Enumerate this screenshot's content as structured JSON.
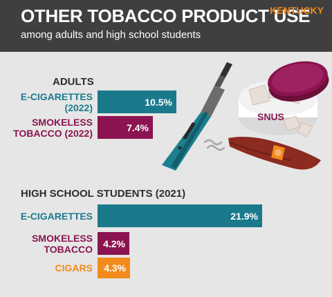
{
  "header": {
    "title": "OTHER TOBACCO PRODUCT USE",
    "subtitle": "among adults and high school students",
    "state": "KENTUCKY"
  },
  "colors": {
    "teal": "#1a7a8c",
    "maroon": "#8b1450",
    "orange": "#f28a1c"
  },
  "illustration": {
    "snus_label": "SNUS"
  },
  "chart_data": [
    {
      "type": "bar",
      "orientation": "horizontal",
      "title": "ADULTS",
      "categories": [
        "E-CIGARETTES (2022)",
        "SMOKELESS TOBACCO (2022)"
      ],
      "category_lines": [
        [
          "E-CIGARETTES",
          "(2022)"
        ],
        [
          "SMOKELESS",
          "TOBACCO (2022)"
        ]
      ],
      "values": [
        10.5,
        7.4
      ],
      "labels": [
        "10.5%",
        "7.4%"
      ],
      "colors": [
        "#1a7a8c",
        "#8b1450"
      ]
    },
    {
      "type": "bar",
      "orientation": "horizontal",
      "title": "HIGH SCHOOL STUDENTS (2021)",
      "categories": [
        "E-CIGARETTES",
        "SMOKELESS TOBACCO",
        "CIGARS"
      ],
      "category_lines": [
        [
          "E-CIGARETTES"
        ],
        [
          "SMOKELESS",
          "TOBACCO"
        ],
        [
          "CIGARS"
        ]
      ],
      "values": [
        21.9,
        4.2,
        4.3
      ],
      "labels": [
        "21.9%",
        "4.2%",
        "4.3%"
      ],
      "colors": [
        "#1a7a8c",
        "#8b1450",
        "#f28a1c"
      ]
    }
  ]
}
